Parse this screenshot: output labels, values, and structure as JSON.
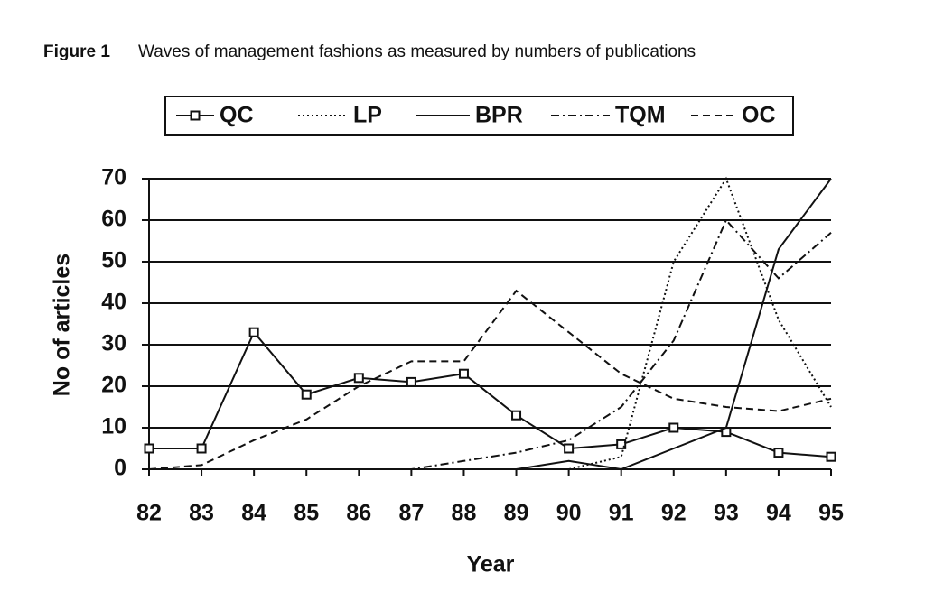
{
  "chart_data": {
    "type": "line",
    "title_label": "Figure 1",
    "title": "Waves of management fashions as measured by numbers of publications",
    "x_label": "Year",
    "y_label": "No of articles",
    "x": [
      82,
      83,
      84,
      85,
      86,
      87,
      88,
      89,
      90,
      91,
      92,
      93,
      94,
      95
    ],
    "xlim": [
      82,
      95
    ],
    "xticks": [
      82,
      83,
      84,
      85,
      86,
      87,
      88,
      89,
      90,
      91,
      92,
      93,
      94,
      95
    ],
    "ylim": [
      0,
      70
    ],
    "yticks": [
      0,
      10,
      20,
      30,
      40,
      50,
      60,
      70
    ],
    "grid": true,
    "series": [
      {
        "name": "QC",
        "color": "#111111",
        "style": "solid",
        "marker": "square",
        "values": [
          5,
          5,
          33,
          18,
          22,
          21,
          23,
          13,
          5,
          6,
          10,
          9,
          4,
          3
        ]
      },
      {
        "name": "LP",
        "color": "#111111",
        "style": "dotted",
        "values": [
          0,
          0,
          0,
          0,
          0,
          0,
          0,
          0,
          0,
          3,
          50,
          70,
          36,
          15
        ]
      },
      {
        "name": "BPR",
        "color": "#111111",
        "style": "solid",
        "values": [
          0,
          0,
          0,
          0,
          0,
          0,
          0,
          0,
          2,
          0,
          5,
          10,
          53,
          70
        ]
      },
      {
        "name": "TQM",
        "color": "#111111",
        "style": "dashdot",
        "values": [
          0,
          0,
          0,
          0,
          0,
          0,
          2,
          4,
          7,
          15,
          31,
          60,
          46,
          57
        ]
      },
      {
        "name": "OC",
        "color": "#111111",
        "style": "dashed",
        "values": [
          0,
          1,
          7,
          12,
          20,
          26,
          26,
          43,
          33,
          23,
          17,
          15,
          14,
          17
        ]
      }
    ]
  }
}
